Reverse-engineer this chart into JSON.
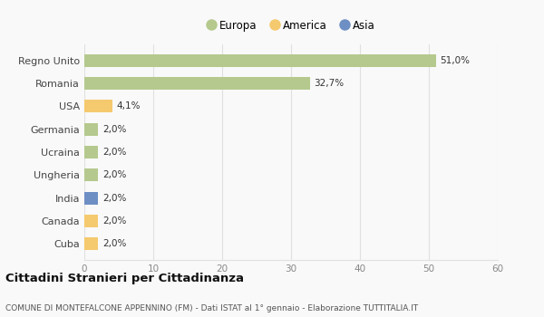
{
  "categories": [
    "Regno Unito",
    "Romania",
    "USA",
    "Germania",
    "Ucraina",
    "Ungheria",
    "India",
    "Canada",
    "Cuba"
  ],
  "values": [
    51.0,
    32.7,
    4.1,
    2.0,
    2.0,
    2.0,
    2.0,
    2.0,
    2.0
  ],
  "labels": [
    "51,0%",
    "32,7%",
    "4,1%",
    "2,0%",
    "2,0%",
    "2,0%",
    "2,0%",
    "2,0%",
    "2,0%"
  ],
  "colors": [
    "#b5c98e",
    "#b5c98e",
    "#f5c96e",
    "#b5c98e",
    "#b5c98e",
    "#b5c98e",
    "#6e8fc4",
    "#f5c96e",
    "#f5c96e"
  ],
  "legend": [
    {
      "label": "Europa",
      "color": "#b5c98e"
    },
    {
      "label": "America",
      "color": "#f5c96e"
    },
    {
      "label": "Asia",
      "color": "#6e8fc4"
    }
  ],
  "xlim": [
    0,
    60
  ],
  "xticks": [
    0,
    10,
    20,
    30,
    40,
    50,
    60
  ],
  "title": "Cittadini Stranieri per Cittadinanza",
  "subtitle": "COMUNE DI MONTEFALCONE APPENNINO (FM) - Dati ISTAT al 1° gennaio - Elaborazione TUTTITALIA.IT",
  "background_color": "#f9f9f9",
  "grid_color": "#e0e0e0",
  "bar_height": 0.55
}
